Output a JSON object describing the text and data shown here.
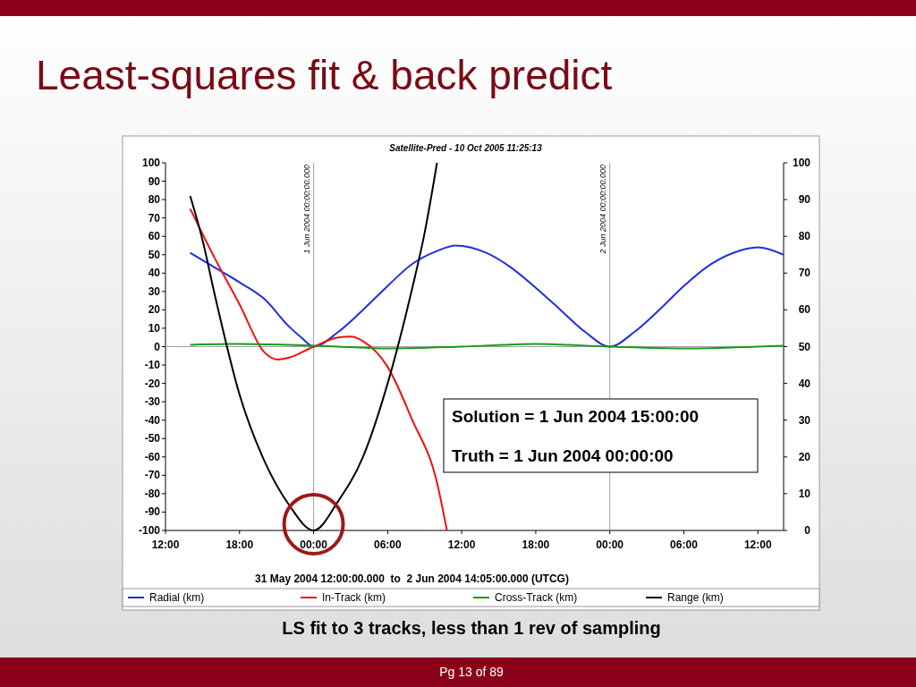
{
  "chart_data": {
    "type": "line",
    "title": "Least-squares fit & back predict",
    "subtitle": "Satellite-Pred - 10 Oct 2005 11:25:13",
    "xlabel": "31 May 2004 12:00:00.000  to  2 Jun 2004 14:05:00.000 (UTCG)",
    "xlim": [
      "2004-05-31T12:00",
      "2004-06-02T14:05"
    ],
    "xticks": [
      {
        "value": "2004-05-31T12:00",
        "label": "12:00"
      },
      {
        "value": "2004-05-31T18:00",
        "label": "18:00"
      },
      {
        "value": "2004-06-01T00:00",
        "label": "00:00"
      },
      {
        "value": "2004-06-01T06:00",
        "label": "06:00"
      },
      {
        "value": "2004-06-01T12:00",
        "label": "12:00"
      },
      {
        "value": "2004-06-01T18:00",
        "label": "18:00"
      },
      {
        "value": "2004-06-02T00:00",
        "label": "00:00"
      },
      {
        "value": "2004-06-02T06:00",
        "label": "06:00"
      },
      {
        "value": "2004-06-02T12:00",
        "label": "12:00"
      }
    ],
    "ylim": [
      -100,
      100
    ],
    "yticks": [
      -100,
      -90,
      -80,
      -70,
      -60,
      -50,
      -40,
      -30,
      -20,
      -10,
      0,
      10,
      20,
      30,
      40,
      50,
      60,
      70,
      80,
      90,
      100
    ],
    "y2lim": [
      0,
      100
    ],
    "y2ticks": [
      0,
      10,
      20,
      30,
      40,
      50,
      60,
      70,
      80,
      90,
      100
    ],
    "grid": false,
    "legend": "bottom",
    "marker": "none",
    "line_style": "solid",
    "series": [
      {
        "name": "Radial (km)",
        "color": "#1f2fe0",
        "x": [
          "2004-05-31T14:00",
          "2004-05-31T16:00",
          "2004-05-31T18:00",
          "2004-05-31T20:00",
          "2004-05-31T22:00",
          "2004-05-31T23:00",
          "2004-06-01T00:00",
          "2004-06-01T02:00",
          "2004-06-01T04:00",
          "2004-06-01T06:00",
          "2004-06-01T08:00",
          "2004-06-01T10:00",
          "2004-06-01T11:30",
          "2004-06-01T14:00",
          "2004-06-01T16:00",
          "2004-06-01T18:00",
          "2004-06-01T20:00",
          "2004-06-01T22:00",
          "2004-06-02T00:00",
          "2004-06-02T02:00",
          "2004-06-02T04:00",
          "2004-06-02T06:00",
          "2004-06-02T08:00",
          "2004-06-02T10:00",
          "2004-06-02T12:00",
          "2004-06-02T14:05"
        ],
        "values": [
          51,
          43,
          35,
          26,
          11,
          5,
          0,
          8,
          20,
          33,
          45,
          52,
          55,
          51,
          43,
          32,
          20,
          8,
          0,
          8,
          20,
          33,
          44,
          51,
          54,
          50
        ]
      },
      {
        "name": "In-Track (km)",
        "color": "#f01010",
        "x": [
          "2004-05-31T14:00",
          "2004-05-31T16:00",
          "2004-05-31T18:00",
          "2004-05-31T20:00",
          "2004-05-31T21:06",
          "2004-05-31T22:00",
          "2004-06-01T00:00",
          "2004-06-01T02:00",
          "2004-06-01T03:00",
          "2004-06-01T04:00",
          "2004-06-01T06:00",
          "2004-06-01T08:00",
          "2004-06-01T10:00",
          "2004-06-01T10:48"
        ],
        "values": [
          75,
          48,
          23,
          -3,
          -7,
          -6,
          0,
          5,
          5.5,
          3,
          -11,
          -40,
          -74,
          -100
        ]
      },
      {
        "name": "Cross-Track (km)",
        "color": "#1a9a1a",
        "x": [
          "2004-05-31T14:00",
          "2004-05-31T18:00",
          "2004-05-31T22:00",
          "2004-06-01T02:00",
          "2004-06-01T06:00",
          "2004-06-01T12:00",
          "2004-06-01T18:00",
          "2004-06-02T00:00",
          "2004-06-02T06:00",
          "2004-06-02T12:00",
          "2004-06-02T14:05"
        ],
        "values": [
          1,
          1.5,
          1,
          0,
          -1,
          0,
          1.5,
          0,
          -1,
          0,
          0.5
        ]
      },
      {
        "name": "Range (km)",
        "color": "#000000",
        "axis": "y2",
        "x": [
          "2004-05-31T14:00",
          "2004-05-31T15:00",
          "2004-05-31T16:00",
          "2004-05-31T18:00",
          "2004-05-31T20:00",
          "2004-05-31T22:00",
          "2004-06-01T00:00",
          "2004-06-01T02:00",
          "2004-06-01T04:00",
          "2004-06-01T06:00",
          "2004-06-01T08:00",
          "2004-06-01T09:00",
          "2004-06-01T10:00"
        ],
        "values": [
          91,
          79,
          64,
          37,
          19,
          7,
          0,
          8,
          20,
          40,
          66,
          81,
          100
        ]
      }
    ],
    "ref_lines": [
      {
        "axis": "x",
        "value": "2004-06-01T00:00",
        "label": "1 Jun 2004 00:00:00.000",
        "color": "#a0a0a0"
      },
      {
        "axis": "x",
        "value": "2004-06-02T00:00",
        "label": "2 Jun 2004 00:00:00.000",
        "color": "#a0a0a0"
      },
      {
        "axis": "y",
        "value": 0,
        "color": "#a0a0a0"
      }
    ],
    "annotations": [
      "Solution = 1 Jun 2004 15:00:00",
      "Truth = 1 Jun 2004 00:00:00",
      "LS fit to 3 tracks, less than 1 rev of sampling",
      "Pg 13 of 89"
    ]
  }
}
